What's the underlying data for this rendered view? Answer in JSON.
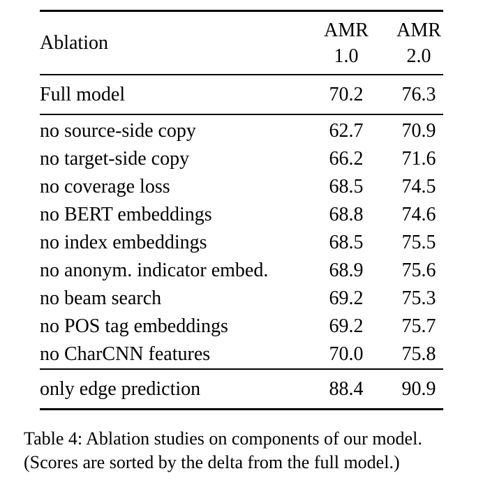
{
  "page": {
    "background": "#ffffff",
    "text_color": "#000000",
    "rule_color": "#000000"
  },
  "table": {
    "header": {
      "col_label": "Ablation",
      "col1": {
        "line1": "AMR",
        "line2": "1.0"
      },
      "col2": {
        "line1": "AMR",
        "line2": "2.0"
      }
    },
    "full_model_row": {
      "label": "Full model",
      "amr1": "70.2",
      "amr2": "76.3"
    },
    "rows": [
      {
        "label": "no source-side copy",
        "amr1": "62.7",
        "amr2": "70.9"
      },
      {
        "label": "no target-side copy",
        "amr1": "66.2",
        "amr2": "71.6"
      },
      {
        "label": "no coverage loss",
        "amr1": "68.5",
        "amr2": "74.5"
      },
      {
        "label": "no BERT embeddings",
        "amr1": "68.8",
        "amr2": "74.6"
      },
      {
        "label": "no index embeddings",
        "amr1": "68.5",
        "amr2": "75.5"
      },
      {
        "label": "no anonym. indicator embed.",
        "amr1": "68.9",
        "amr2": "75.6"
      },
      {
        "label": "no beam search",
        "amr1": "69.2",
        "amr2": "75.3"
      },
      {
        "label": "no POS tag embeddings",
        "amr1": "69.2",
        "amr2": "75.7"
      },
      {
        "label": "no CharCNN features",
        "amr1": "70.0",
        "amr2": "75.8"
      }
    ],
    "edge_row": {
      "label": "only edge prediction",
      "amr1": "88.4",
      "amr2": "90.9"
    }
  },
  "caption": {
    "line1": "Table 4: Ablation studies on components of our model.",
    "line2": "(Scores are sorted by the delta from the full model.)"
  }
}
